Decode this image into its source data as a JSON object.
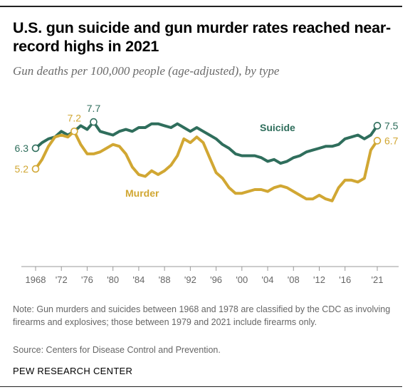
{
  "header": {
    "title": "U.S. gun suicide and gun murder rates reached near-record highs in 2021",
    "subtitle": "Gun deaths per 100,000 people (age-adjusted), by type"
  },
  "footer": {
    "note": "Note: Gun murders and suicides between 1968 and 1978 are classified by the CDC as involving firearms and explosives; those between 1979 and 2021 include firearms only.",
    "source": "Source: Centers for Disease Control and Prevention.",
    "brand": "PEW RESEARCH CENTER"
  },
  "colors": {
    "suicide": "#2f6e5c",
    "murder": "#d1a733",
    "axis": "#999999",
    "tick_text": "#666666"
  },
  "chart_data": {
    "type": "line",
    "title": "U.S. gun suicide and gun murder rates reached near-record highs in 2021",
    "subtitle": "Gun deaths per 100,000 people (age-adjusted), by type",
    "xlim": [
      1968,
      2021
    ],
    "ylim": [
      0,
      8.5
    ],
    "grid": false,
    "legend": "inline labels",
    "x_tick_labels": [
      {
        "year": 1968,
        "label": "1968"
      },
      {
        "year": 1972,
        "label": "'72"
      },
      {
        "year": 1976,
        "label": "'76"
      },
      {
        "year": 1980,
        "label": "'80"
      },
      {
        "year": 1984,
        "label": "'84"
      },
      {
        "year": 1988,
        "label": "'88"
      },
      {
        "year": 1992,
        "label": "'92"
      },
      {
        "year": 1996,
        "label": "'96"
      },
      {
        "year": 2000,
        "label": "'00"
      },
      {
        "year": 2004,
        "label": "'04"
      },
      {
        "year": 2008,
        "label": "'08"
      },
      {
        "year": 2012,
        "label": "'12"
      },
      {
        "year": 2016,
        "label": "'16"
      },
      {
        "year": 2021,
        "label": "'21"
      }
    ],
    "x": [
      1968,
      1969,
      1970,
      1971,
      1972,
      1973,
      1974,
      1975,
      1976,
      1977,
      1978,
      1979,
      1980,
      1981,
      1982,
      1983,
      1984,
      1985,
      1986,
      1987,
      1988,
      1989,
      1990,
      1991,
      1992,
      1993,
      1994,
      1995,
      1996,
      1997,
      1998,
      1999,
      2000,
      2001,
      2002,
      2003,
      2004,
      2005,
      2006,
      2007,
      2008,
      2009,
      2010,
      2011,
      2012,
      2013,
      2014,
      2015,
      2016,
      2017,
      2018,
      2019,
      2020,
      2021
    ],
    "series": [
      {
        "name": "Suicide",
        "key": "suicide",
        "values": [
          6.3,
          6.6,
          6.8,
          6.9,
          7.2,
          7.0,
          7.2,
          7.5,
          7.3,
          7.7,
          7.2,
          7.1,
          7.0,
          7.2,
          7.3,
          7.2,
          7.4,
          7.4,
          7.6,
          7.6,
          7.5,
          7.4,
          7.6,
          7.4,
          7.2,
          7.4,
          7.2,
          7.0,
          6.8,
          6.5,
          6.3,
          6.0,
          5.9,
          5.9,
          5.9,
          5.8,
          5.6,
          5.7,
          5.5,
          5.6,
          5.8,
          5.9,
          6.1,
          6.2,
          6.3,
          6.4,
          6.4,
          6.5,
          6.8,
          6.9,
          7.0,
          6.8,
          7.0,
          7.5
        ],
        "labels": [
          {
            "year": 1968,
            "value": 6.3,
            "text": "6.3"
          },
          {
            "year": 1977,
            "value": 7.7,
            "text": "7.7"
          },
          {
            "year": 2021,
            "value": 7.5,
            "text": "7.5"
          }
        ]
      },
      {
        "name": "Murder",
        "key": "murder",
        "values": [
          5.2,
          5.7,
          6.4,
          6.9,
          7.0,
          6.9,
          7.2,
          6.5,
          6.0,
          6.0,
          6.1,
          6.3,
          6.5,
          6.4,
          6.0,
          5.3,
          4.9,
          4.8,
          5.1,
          4.9,
          5.1,
          5.4,
          5.9,
          6.8,
          6.6,
          6.9,
          6.6,
          5.8,
          5.0,
          4.7,
          4.2,
          3.9,
          3.9,
          4.0,
          4.1,
          4.1,
          4.0,
          4.2,
          4.3,
          4.2,
          4.0,
          3.8,
          3.6,
          3.6,
          3.8,
          3.6,
          3.5,
          4.2,
          4.6,
          4.6,
          4.5,
          4.7,
          6.2,
          6.7
        ],
        "labels": [
          {
            "year": 1968,
            "value": 5.2,
            "text": "5.2"
          },
          {
            "year": 1974,
            "value": 7.2,
            "text": "7.2"
          },
          {
            "year": 2021,
            "value": 6.7,
            "text": "6.7"
          }
        ]
      }
    ]
  }
}
